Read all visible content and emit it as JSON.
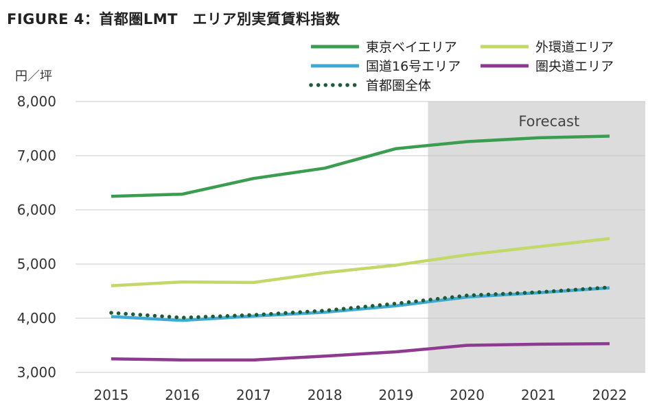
{
  "chart_data": {
    "type": "line",
    "title": "FIGURE 4：首都圏LMT　エリア別実質賃料指数",
    "ylabel": "円／坪",
    "xlabel": "",
    "x": [
      "2015",
      "2016",
      "2017",
      "2018",
      "2019",
      "2020",
      "2021",
      "2022"
    ],
    "ylim": [
      3000,
      8000
    ],
    "yticks": [
      "3,000",
      "4,000",
      "5,000",
      "6,000",
      "7,000",
      "8,000"
    ],
    "grid": "horizontal",
    "legend_position": "top-right",
    "forecast_label": "Forecast",
    "forecast_start": 2019.45,
    "series": [
      {
        "name": "東京ベイエリア",
        "color": "#3a9d4f",
        "style": "solid",
        "values": [
          6250,
          6290,
          6580,
          6770,
          7130,
          7260,
          7330,
          7360
        ]
      },
      {
        "name": "外環道エリア",
        "color": "#c2d96a",
        "style": "solid",
        "values": [
          4600,
          4670,
          4660,
          4840,
          4980,
          5170,
          5320,
          5470
        ]
      },
      {
        "name": "国道16号エリア",
        "color": "#3fa9d6",
        "style": "solid",
        "values": [
          4030,
          3960,
          4040,
          4110,
          4230,
          4390,
          4470,
          4560
        ]
      },
      {
        "name": "圏央道エリア",
        "color": "#8e3a91",
        "style": "solid",
        "values": [
          3250,
          3230,
          3230,
          3300,
          3380,
          3500,
          3520,
          3530
        ]
      },
      {
        "name": "首都圏全体",
        "color": "#1e5c33",
        "style": "dotted",
        "values": [
          4100,
          4010,
          4060,
          4140,
          4270,
          4420,
          4480,
          4570
        ]
      }
    ]
  }
}
